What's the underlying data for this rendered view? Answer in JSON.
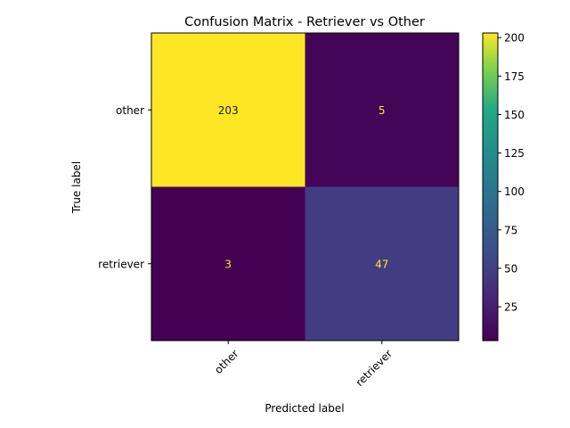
{
  "chart_data": {
    "type": "heatmap",
    "title": "Confusion Matrix - Retriever vs Other",
    "xlabel": "Predicted label",
    "ylabel": "True label",
    "x_categories": [
      "other",
      "retriever"
    ],
    "y_categories": [
      "other",
      "retriever"
    ],
    "values": [
      [
        203,
        5
      ],
      [
        3,
        47
      ]
    ],
    "colormap": "viridis",
    "colorbar": {
      "range": [
        3,
        203
      ],
      "ticks": [
        25,
        50,
        75,
        100,
        125,
        150,
        175,
        200
      ],
      "tick_labels": [
        "25",
        "50",
        "75",
        "100",
        "125",
        "150",
        "175",
        "200"
      ]
    },
    "cell_text_colors": {
      "on_light": "#1a1a1a",
      "on_dark": "#fde725"
    }
  }
}
